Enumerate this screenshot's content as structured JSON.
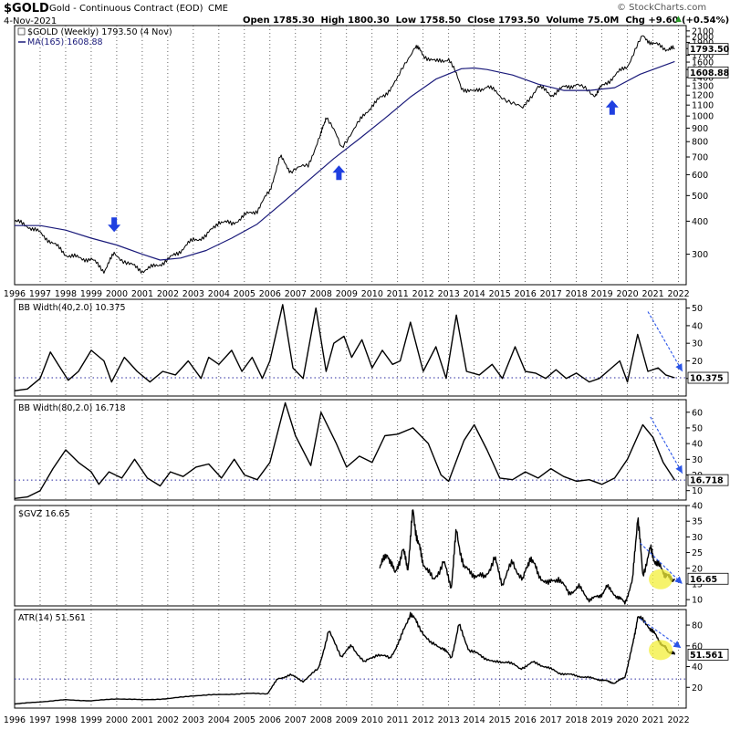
{
  "header": {
    "ticker": "$GOLD",
    "name": "Gold - Continuous Contract (EOD)",
    "exchange": "CME",
    "date": "4-Nov-2021",
    "ohlc": "Open 1785.30  High 1800.30  Low 1758.50  Close 1793.50  Volume 75.0M  Chg +9.60 (+0.54%)",
    "watermark": "© StockCharts.com",
    "chg_arrow": "▲"
  },
  "colors": {
    "price": "#000000",
    "ma": "#1a1a7a",
    "arrow": "#1f3fe0",
    "dashed_arrow": "#2a55e8",
    "grid": "#000000",
    "threshold": "#2a2aa0",
    "highlight": "#f3ef3a"
  },
  "x_axis_years": [
    "1996",
    "1997",
    "1998",
    "1999",
    "2000",
    "2001",
    "2002",
    "2003",
    "2004",
    "2005",
    "2006",
    "2007",
    "2008",
    "2009",
    "2010",
    "2011",
    "2012",
    "2013",
    "2014",
    "2015",
    "2016",
    "2017",
    "2018",
    "2019",
    "2020",
    "2021",
    "2022"
  ],
  "chart_data": [
    {
      "type": "line",
      "panel": "price",
      "scale": "log",
      "ylim": [
        230,
        2200
      ],
      "y_ticks": [
        300,
        400,
        500,
        600,
        700,
        800,
        900,
        1000,
        1100,
        1200,
        1300,
        1400,
        1500,
        1600,
        1700,
        1800,
        1900,
        2000,
        2100
      ],
      "legend": [
        {
          "label": "$GOLD (Weekly) 1793.50 (4 Nov)"
        },
        {
          "label": "MA(165) 1608.88"
        }
      ],
      "last_value_tags": [
        "1793.50",
        "1608.88"
      ],
      "series": [
        {
          "name": "$GOLD (Weekly)",
          "x": [
            1996.0,
            1996.5,
            1997.0,
            1997.5,
            1998.0,
            1998.5,
            1999.0,
            1999.5,
            1999.9,
            2000.5,
            2001.0,
            2001.5,
            2002.0,
            2002.5,
            2003.0,
            2003.5,
            2004.0,
            2004.5,
            2005.0,
            2005.5,
            2006.0,
            2006.4,
            2006.8,
            2007.5,
            2008.0,
            2008.2,
            2008.8,
            2009.5,
            2010.0,
            2010.5,
            2011.0,
            2011.7,
            2012.0,
            2012.5,
            2013.0,
            2013.5,
            2014.0,
            2014.5,
            2015.0,
            2015.9,
            2016.5,
            2017.0,
            2017.5,
            2018.0,
            2018.7,
            2019.0,
            2019.5,
            2020.0,
            2020.6,
            2021.0,
            2021.5,
            2021.85
          ],
          "values": [
            400,
            385,
            360,
            330,
            300,
            290,
            287,
            260,
            300,
            275,
            260,
            270,
            285,
            310,
            340,
            350,
            400,
            390,
            420,
            440,
            520,
            700,
            620,
            650,
            850,
            1000,
            760,
            950,
            1100,
            1200,
            1380,
            1850,
            1700,
            1600,
            1650,
            1280,
            1230,
            1300,
            1200,
            1060,
            1300,
            1200,
            1280,
            1320,
            1200,
            1290,
            1420,
            1550,
            2000,
            1880,
            1800,
            1793.5
          ]
        },
        {
          "name": "MA(165)",
          "x": [
            1996.0,
            1997.0,
            1998.0,
            1999.0,
            2000.0,
            2001.0,
            2001.7,
            2002.5,
            2003.5,
            2004.5,
            2005.5,
            2006.5,
            2007.5,
            2008.5,
            2009.5,
            2010.5,
            2011.5,
            2012.5,
            2013.5,
            2014.0,
            2014.5,
            2015.5,
            2016.5,
            2017.5,
            2018.5,
            2019.5,
            2020.5,
            2021.85
          ],
          "values": [
            385,
            385,
            370,
            345,
            325,
            300,
            285,
            290,
            310,
            345,
            390,
            470,
            570,
            690,
            820,
            980,
            1180,
            1380,
            1510,
            1520,
            1500,
            1430,
            1320,
            1250,
            1250,
            1280,
            1440,
            1608.88
          ]
        }
      ],
      "annotations": [
        {
          "type": "arrow-down",
          "x": 1999.9,
          "y": 370
        },
        {
          "type": "arrow-up",
          "x": 2008.7,
          "y": 640
        },
        {
          "type": "arrow-up",
          "x": 2019.4,
          "y": 1130
        }
      ]
    },
    {
      "type": "line",
      "panel": "bbw40",
      "title": "BB Width(40,2.0) 10.375",
      "ylim": [
        0,
        55
      ],
      "y_ticks": [
        10,
        20,
        30,
        40,
        50
      ],
      "last_value_tag": "10.375",
      "threshold": 10.375,
      "series": [
        {
          "name": "BB Width(40,2.0)",
          "x": [
            1996.0,
            1996.5,
            1997.0,
            1997.4,
            1997.7,
            1998.1,
            1998.5,
            1999.0,
            1999.5,
            1999.8,
            2000.3,
            2000.8,
            2001.3,
            2001.8,
            2002.3,
            2002.8,
            2003.3,
            2003.6,
            2004.0,
            2004.5,
            2004.9,
            2005.3,
            2005.7,
            2006.0,
            2006.5,
            2006.9,
            2007.3,
            2007.8,
            2008.2,
            2008.5,
            2008.9,
            2009.2,
            2009.6,
            2010.0,
            2010.4,
            2010.8,
            2011.1,
            2011.5,
            2012.0,
            2012.5,
            2012.9,
            2013.3,
            2013.7,
            2014.2,
            2014.7,
            2015.1,
            2015.6,
            2016.0,
            2016.4,
            2016.8,
            2017.2,
            2017.6,
            2018.0,
            2018.5,
            2018.9,
            2019.3,
            2019.7,
            2020.0,
            2020.4,
            2020.8,
            2021.2,
            2021.5,
            2021.85
          ],
          "values": [
            3,
            4,
            10,
            25,
            18,
            9,
            14,
            26,
            20,
            8,
            22,
            14,
            8,
            14,
            12,
            20,
            10,
            22,
            18,
            26,
            14,
            22,
            10,
            20,
            52,
            16,
            10,
            50,
            14,
            30,
            34,
            22,
            32,
            16,
            26,
            18,
            20,
            42,
            14,
            28,
            10,
            46,
            14,
            12,
            18,
            10,
            28,
            14,
            13,
            10,
            15,
            10,
            13,
            8,
            10,
            15,
            20,
            8,
            35,
            14,
            16,
            12,
            10.375
          ]
        }
      ]
    },
    {
      "type": "line",
      "panel": "bbw80",
      "title": "BB Width(80,2.0) 16.718",
      "ylim": [
        4,
        68
      ],
      "y_ticks": [
        10,
        20,
        30,
        40,
        50,
        60
      ],
      "last_value_tag": "16.718",
      "threshold": 16.718,
      "series": [
        {
          "name": "BB Width(80,2.0)",
          "x": [
            1996.0,
            1996.5,
            1997.0,
            1997.5,
            1998.0,
            1998.5,
            1999.0,
            1999.3,
            1999.7,
            2000.2,
            2000.7,
            2001.2,
            2001.7,
            2002.1,
            2002.6,
            2003.1,
            2003.6,
            2004.1,
            2004.6,
            2005.0,
            2005.5,
            2006.0,
            2006.6,
            2007.0,
            2007.6,
            2008.0,
            2008.6,
            2009.0,
            2009.5,
            2010.0,
            2010.5,
            2011.0,
            2011.6,
            2012.2,
            2012.7,
            2013.0,
            2013.6,
            2014.0,
            2014.5,
            2015.0,
            2015.5,
            2016.0,
            2016.5,
            2017.0,
            2017.5,
            2018.0,
            2018.5,
            2019.0,
            2019.5,
            2020.0,
            2020.6,
            2021.0,
            2021.4,
            2021.85
          ],
          "values": [
            5,
            6,
            10,
            24,
            36,
            28,
            22,
            14,
            22,
            18,
            30,
            18,
            13,
            22,
            19,
            25,
            27,
            18,
            30,
            20,
            17,
            28,
            66,
            45,
            26,
            60,
            40,
            25,
            32,
            28,
            45,
            46,
            50,
            40,
            20,
            16,
            42,
            52,
            36,
            18,
            17,
            22,
            18,
            24,
            19,
            16,
            17,
            14,
            18,
            30,
            52,
            44,
            28,
            16.718
          ]
        }
      ]
    },
    {
      "type": "line",
      "panel": "gvz",
      "title": "$GVZ 16.65",
      "ylim": [
        8,
        40
      ],
      "y_ticks": [
        10,
        15,
        20,
        25,
        30,
        35,
        40
      ],
      "last_value_tag": "16.65",
      "series": [
        {
          "name": "$GVZ",
          "x": [
            2010.3,
            2010.6,
            2010.9,
            2011.2,
            2011.4,
            2011.6,
            2011.8,
            2012.0,
            2012.4,
            2012.8,
            2013.1,
            2013.3,
            2013.6,
            2014.0,
            2014.4,
            2014.8,
            2015.1,
            2015.5,
            2015.9,
            2016.2,
            2016.5,
            2016.9,
            2017.3,
            2017.7,
            2018.1,
            2018.5,
            2018.9,
            2019.2,
            2019.6,
            2019.9,
            2020.2,
            2020.4,
            2020.6,
            2020.9,
            2021.1,
            2021.4,
            2021.6,
            2021.85
          ],
          "values": [
            20,
            25,
            18,
            26,
            20,
            38,
            28,
            22,
            16,
            22,
            14,
            32,
            20,
            18,
            17,
            23,
            15,
            22,
            16,
            24,
            18,
            15,
            17,
            12,
            14,
            10,
            11,
            14,
            11,
            9,
            16,
            37,
            18,
            26,
            22,
            19,
            17,
            16.65
          ]
        }
      ],
      "annotations": [
        {
          "type": "highlight",
          "x": 2021.3,
          "y": 16.5
        }
      ]
    },
    {
      "type": "line",
      "panel": "atr",
      "title": "ATR(14) 51.561",
      "ylim": [
        0,
        95
      ],
      "y_ticks": [
        20,
        40,
        60,
        80
      ],
      "last_value_tag": "51.561",
      "threshold": 28,
      "series": [
        {
          "name": "ATR(14)",
          "x": [
            1996.0,
            1997.0,
            1998.0,
            1999.0,
            2000.0,
            2001.0,
            2002.0,
            2003.0,
            2004.0,
            2005.0,
            2005.9,
            2006.3,
            2006.8,
            2007.3,
            2007.9,
            2008.3,
            2008.8,
            2009.2,
            2009.7,
            2010.2,
            2010.7,
            2011.1,
            2011.5,
            2011.8,
            2012.3,
            2012.8,
            2013.1,
            2013.4,
            2013.8,
            2014.3,
            2014.8,
            2015.3,
            2015.8,
            2016.3,
            2016.8,
            2017.3,
            2017.8,
            2018.3,
            2018.8,
            2019.2,
            2019.5,
            2019.9,
            2020.2,
            2020.4,
            2020.8,
            2021.1,
            2021.4,
            2021.6,
            2021.85
          ],
          "values": [
            4,
            6,
            8,
            7,
            9,
            8,
            9,
            12,
            13,
            14,
            14,
            28,
            32,
            26,
            38,
            74,
            50,
            60,
            44,
            52,
            48,
            66,
            92,
            80,
            62,
            58,
            48,
            80,
            56,
            50,
            44,
            45,
            38,
            44,
            40,
            34,
            32,
            30,
            28,
            26,
            24,
            30,
            60,
            88,
            80,
            70,
            60,
            55,
            51.561
          ]
        }
      ],
      "annotations": [
        {
          "type": "highlight",
          "x": 2021.3,
          "y": 56
        }
      ]
    }
  ]
}
